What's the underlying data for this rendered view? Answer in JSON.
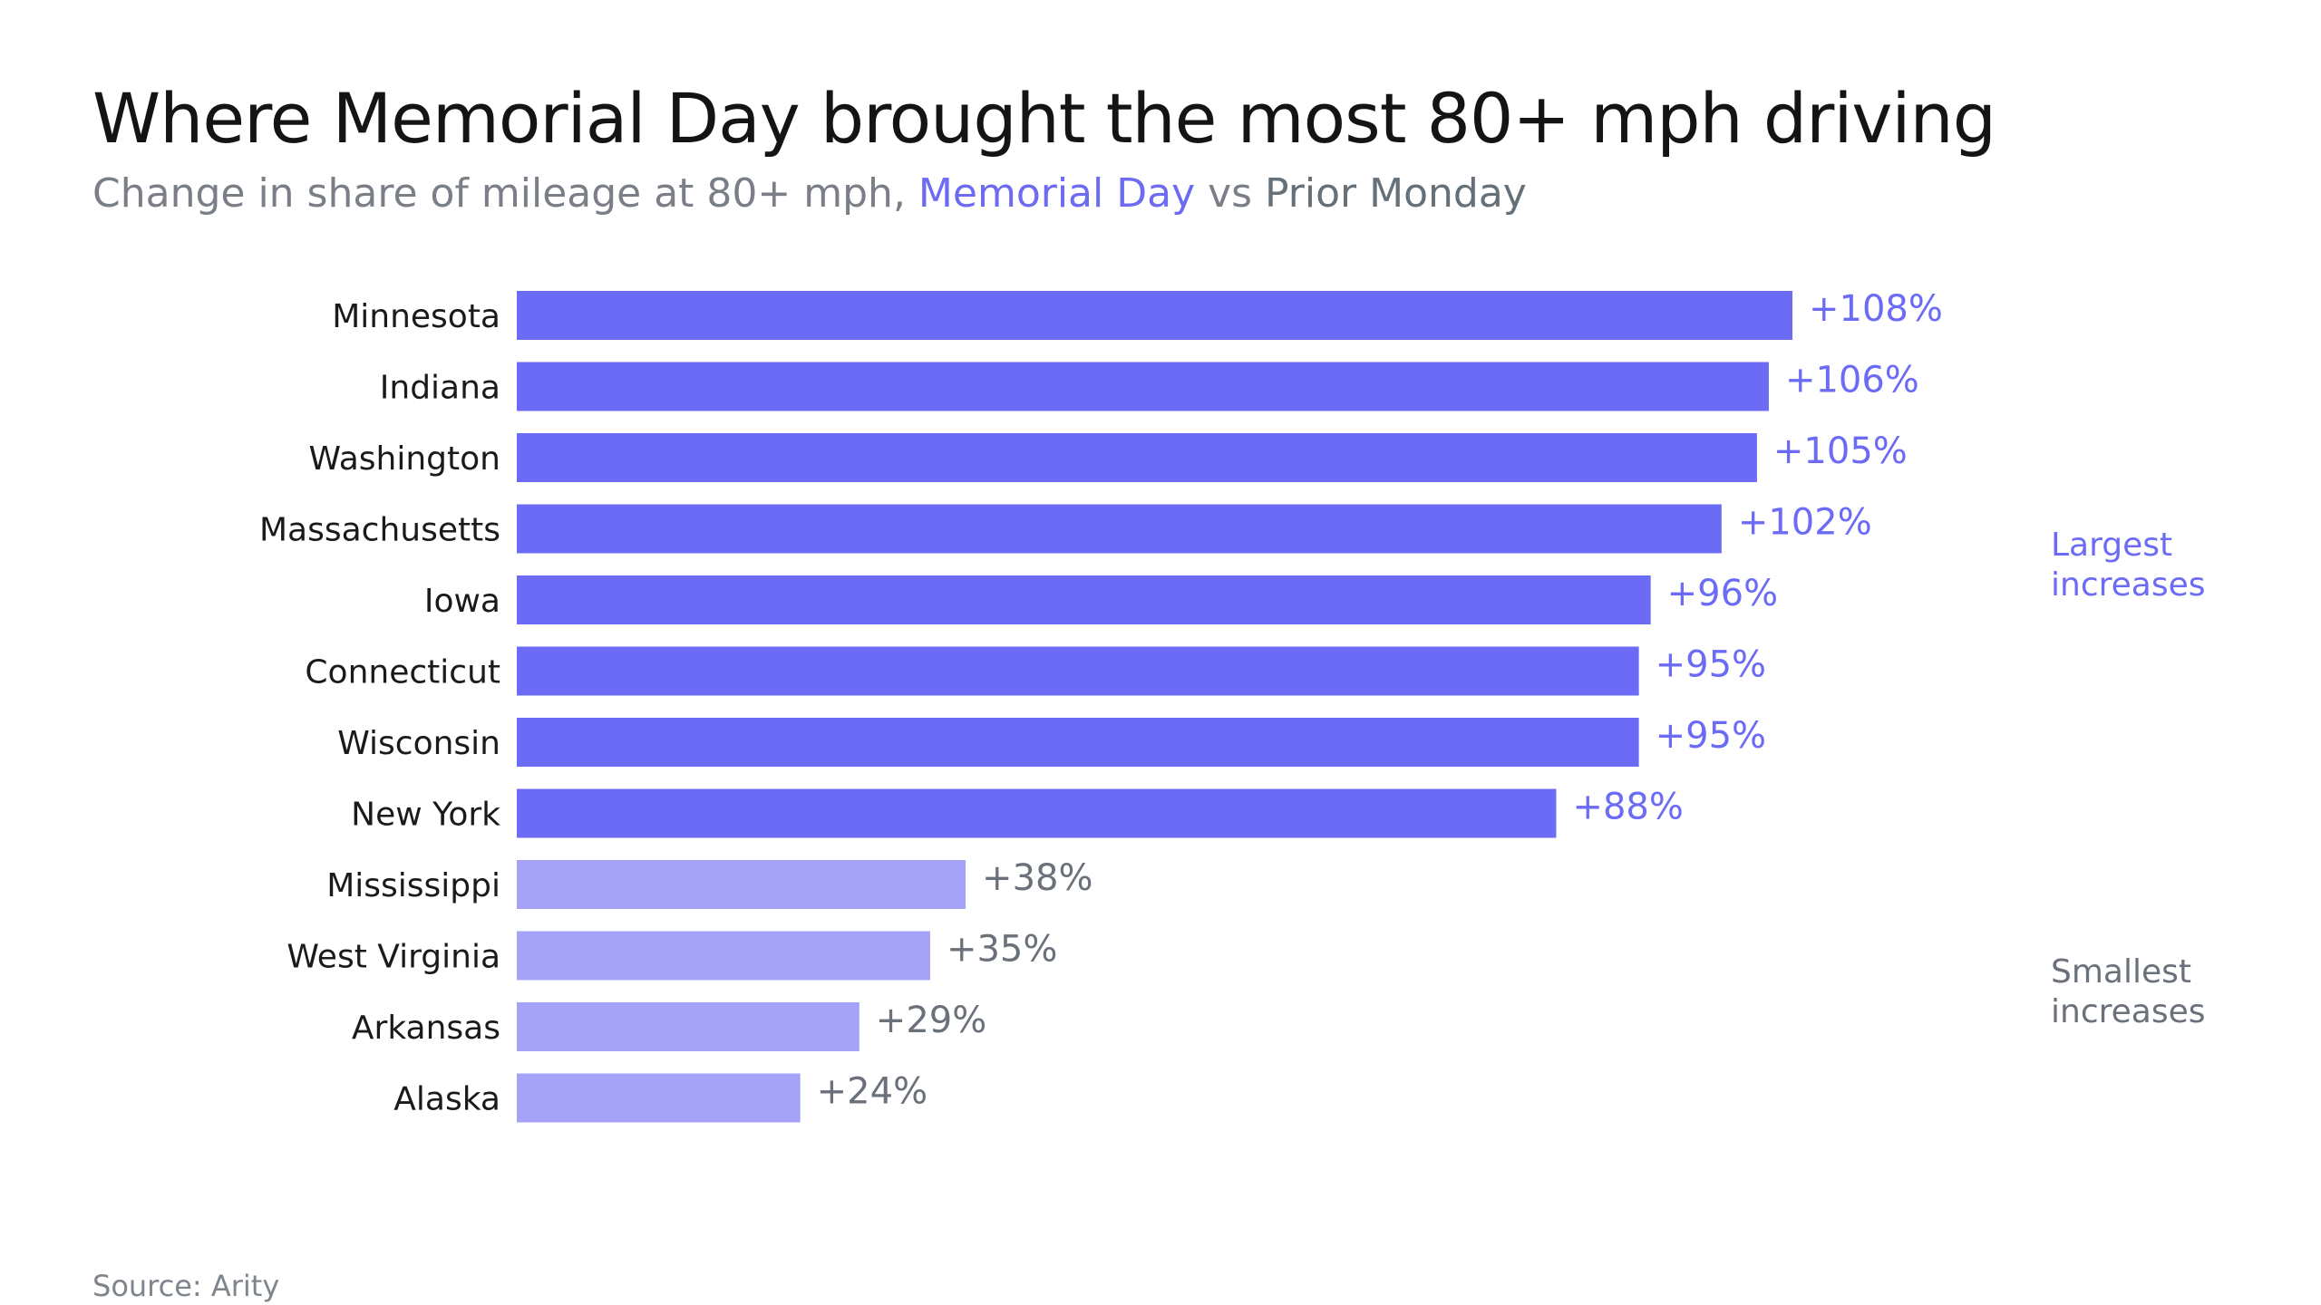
{
  "header": {
    "title": "Where Memorial Day brought the most 80+ mph driving",
    "subtitle_prefix": "Change in share of mileage at 80+ mph, ",
    "subtitle_highlight_1": "Memorial Day",
    "subtitle_mid": " vs ",
    "subtitle_highlight_2": "Prior Monday"
  },
  "footer": {
    "source": "Source: Arity"
  },
  "colors": {
    "largest_bar": "#6c6bf5",
    "smallest_bar": "#a4a3f7",
    "largest_text": "#6c6bf5",
    "smallest_text": "#6b717a",
    "category_text": "#1a1a1a"
  },
  "chart_data": {
    "type": "bar",
    "orientation": "horizontal",
    "categories": [
      "Minnesota",
      "Indiana",
      "Washington",
      "Massachusetts",
      "Iowa",
      "Connecticut",
      "Wisconsin",
      "New York",
      "Mississippi",
      "West Virginia",
      "Arkansas",
      "Alaska"
    ],
    "values": [
      108,
      106,
      105,
      102,
      96,
      95,
      95,
      88,
      38,
      35,
      29,
      24
    ],
    "value_labels": [
      "+108%",
      "+106%",
      "+105%",
      "+102%",
      "+96%",
      "+95%",
      "+95%",
      "+88%",
      "+38%",
      "+35%",
      "+29%",
      "+24%"
    ],
    "groups": [
      "largest",
      "largest",
      "largest",
      "largest",
      "largest",
      "largest",
      "largest",
      "largest",
      "smallest",
      "smallest",
      "smallest",
      "smallest"
    ],
    "group_labels": {
      "largest": [
        "Largest",
        "increases"
      ],
      "smallest": [
        "Smallest",
        "increases"
      ]
    },
    "xlim": [
      0,
      108
    ],
    "grid": false,
    "axes_visible": false
  }
}
